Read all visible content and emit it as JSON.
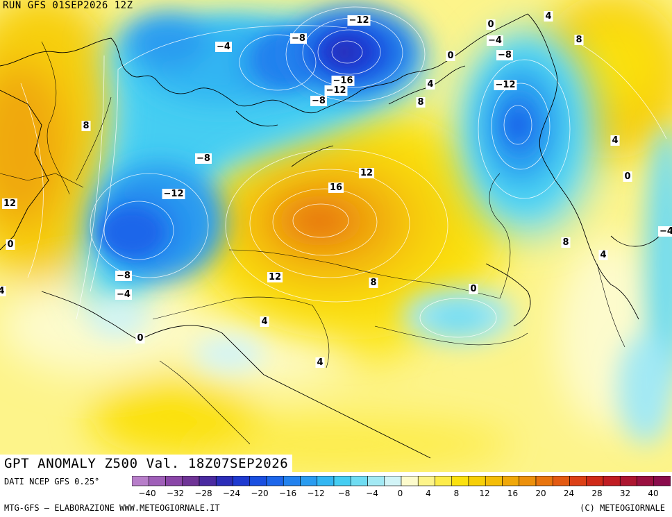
{
  "header": {
    "run": "RUN GFS 01SEP2026 12Z"
  },
  "title": "GPT ANOMALY Z500 Val. 18Z07SEP2026",
  "footer": {
    "source": "DATI NCEP GFS 0.25°",
    "left_credit": "MTG-GFS – ELABORAZIONE WWW.METEOGIORNALE.IT",
    "right_credit": "(C) METEOGIORNALE"
  },
  "colorbar": {
    "colors": [
      "#b77ec9",
      "#9f5fb8",
      "#8a46a7",
      "#6f3496",
      "#4a2aa0",
      "#2c2db8",
      "#1f3ad0",
      "#1a4fe0",
      "#1d66ea",
      "#2382ee",
      "#2a9cf0",
      "#33b6f2",
      "#45cdf2",
      "#6fdcf2",
      "#a3e9f4",
      "#d2f4f7",
      "#fdfbcc",
      "#fdf48a",
      "#fdec4a",
      "#fbe10f",
      "#f7cf08",
      "#f4bd08",
      "#f0a80a",
      "#ec900c",
      "#e8740e",
      "#e35a12",
      "#dc4016",
      "#cf2a18",
      "#c01c22",
      "#ad1630",
      "#9a1040",
      "#8a0c4c"
    ],
    "ticks": [
      "-40",
      "-32",
      "-28",
      "-24",
      "-20",
      "-16",
      "-12",
      "-8",
      "-4",
      "0",
      "4",
      "8",
      "12",
      "16",
      "20",
      "24",
      "28",
      "32",
      "40"
    ]
  },
  "contour_labels": [
    {
      "text": "-12"
    },
    {
      "text": "-8"
    },
    {
      "text": "-4"
    },
    {
      "text": "4"
    },
    {
      "text": "0"
    },
    {
      "text": "-4"
    },
    {
      "text": "8"
    },
    {
      "text": "0"
    },
    {
      "text": "-8"
    },
    {
      "text": "-16"
    },
    {
      "text": "-12"
    },
    {
      "text": "-8"
    },
    {
      "text": "4"
    },
    {
      "text": "8"
    },
    {
      "text": "-12"
    },
    {
      "text": "8"
    },
    {
      "text": "-8"
    },
    {
      "text": "4"
    },
    {
      "text": "12"
    },
    {
      "text": "-12"
    },
    {
      "text": "16"
    },
    {
      "text": "0"
    },
    {
      "text": "12"
    },
    {
      "text": "8"
    },
    {
      "text": "0"
    },
    {
      "text": "4"
    },
    {
      "text": "-8"
    },
    {
      "text": "12"
    },
    {
      "text": "8"
    },
    {
      "text": "-4"
    },
    {
      "text": "4"
    },
    {
      "text": "0"
    },
    {
      "text": "0"
    },
    {
      "text": "4"
    },
    {
      "text": "4"
    },
    {
      "text": "-4"
    }
  ]
}
